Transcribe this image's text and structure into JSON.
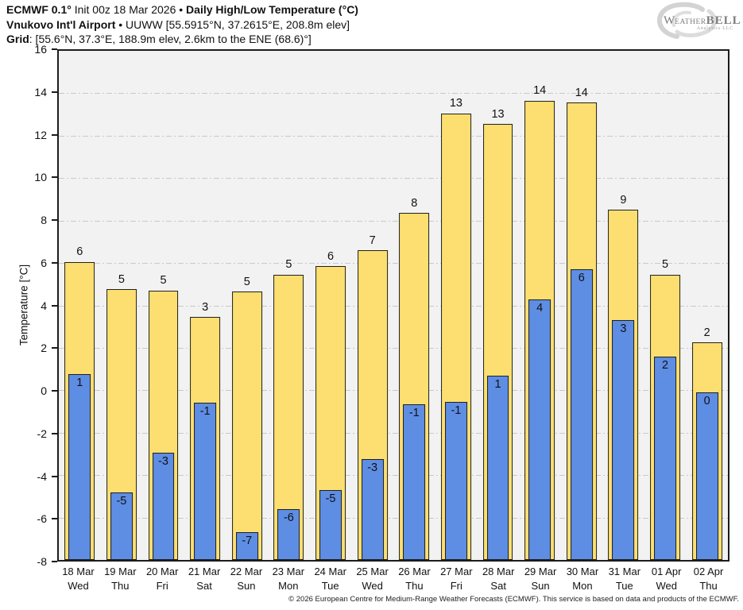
{
  "header": {
    "line1": {
      "bold1": "ECMWF 0.1°",
      "text1": " Init 00z 18 Mar 2026 • ",
      "bold2": "Daily High/Low Temperature (°C)"
    },
    "line2": {
      "bold": "Vnukovo Int'l Airport",
      "text": " • UUWW [55.5915°N, 37.2615°E, 208.8m elev]"
    },
    "line3": {
      "bold": "Grid",
      "text": ": [55.6°N, 37.3°E, 188.9m elev, 2.6km to the ENE (68.6)°]"
    }
  },
  "logo": {
    "w": "W",
    "eather": "EATHER",
    "bell": "BELL",
    "sub": "Analytics LLC"
  },
  "chart_data": {
    "type": "bar",
    "title": "ECMWF 0.1° Init 00z 18 Mar 2026 • Daily High/Low Temperature (°C) — Vnukovo Int'l Airport (UUWW)",
    "xlabel": "",
    "ylabel": "Temperature [°C]",
    "ylim": [
      -8,
      16
    ],
    "yticks": [
      16,
      14,
      12,
      10,
      8,
      6,
      4,
      2,
      0,
      -2,
      -4,
      -6,
      -8
    ],
    "grid": "horizontal dash-dot gridlines at every 2°C",
    "legend": "none",
    "plot_bg": "#f2f2f2",
    "grid_color": "#c9c9c9",
    "axis_color": "#1c1c1c",
    "bar_colors": {
      "high": "#fcdf70",
      "low": "#5e8de4",
      "edge": "#1f1f1f"
    },
    "baseline": -8,
    "categories": [
      {
        "date": "18 Mar",
        "weekday": "Wed"
      },
      {
        "date": "19 Mar",
        "weekday": "Thu"
      },
      {
        "date": "20 Mar",
        "weekday": "Fri"
      },
      {
        "date": "21 Mar",
        "weekday": "Sat"
      },
      {
        "date": "22 Mar",
        "weekday": "Sun"
      },
      {
        "date": "23 Mar",
        "weekday": "Mon"
      },
      {
        "date": "24 Mar",
        "weekday": "Tue"
      },
      {
        "date": "25 Mar",
        "weekday": "Wed"
      },
      {
        "date": "26 Mar",
        "weekday": "Thu"
      },
      {
        "date": "27 Mar",
        "weekday": "Fri"
      },
      {
        "date": "28 Mar",
        "weekday": "Sat"
      },
      {
        "date": "29 Mar",
        "weekday": "Sun"
      },
      {
        "date": "30 Mar",
        "weekday": "Mon"
      },
      {
        "date": "31 Mar",
        "weekday": "Tue"
      },
      {
        "date": "01 Apr",
        "weekday": "Wed"
      },
      {
        "date": "02 Apr",
        "weekday": "Thu"
      }
    ],
    "series": [
      {
        "name": "Daily High",
        "values": [
          6.05,
          4.75,
          4.7,
          3.45,
          4.65,
          5.45,
          5.85,
          6.6,
          8.35,
          13.05,
          12.55,
          13.65,
          13.55,
          8.5,
          5.45,
          2.25
        ],
        "labels": [
          "6",
          "5",
          "5",
          "3",
          "5",
          "5",
          "6",
          "7",
          "8",
          "13",
          "13",
          "14",
          "14",
          "9",
          "5",
          "2"
        ]
      },
      {
        "name": "Daily Low",
        "values": [
          0.75,
          -4.8,
          -2.95,
          -0.6,
          -6.7,
          -5.6,
          -4.7,
          -3.25,
          -0.65,
          -0.55,
          0.7,
          4.3,
          5.7,
          3.3,
          1.6,
          -0.1
        ],
        "labels": [
          "1",
          "-5",
          "-3",
          "-1",
          "-7",
          "-6",
          "-5",
          "-3",
          "-1",
          "-1",
          "1",
          "4",
          "6",
          "3",
          "2",
          "0"
        ]
      }
    ]
  },
  "footer": {
    "copyright": "© 2026 European Centre for Medium-Range Weather Forecasts (ECMWF). This service is based on data and products of the ECMWF."
  }
}
